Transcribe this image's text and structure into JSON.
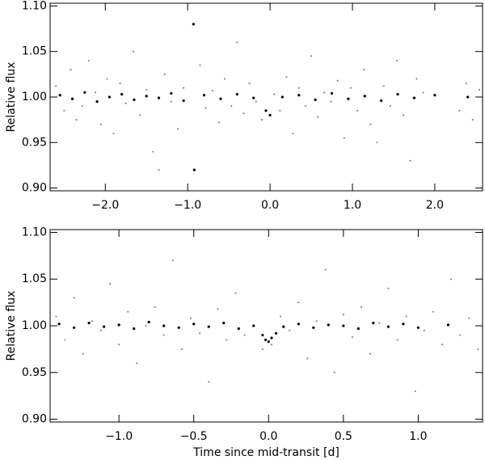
{
  "chart_data": [
    {
      "type": "scatter",
      "ylabel": "Relative flux",
      "xlim": [
        -2.67,
        2.58
      ],
      "ylim": [
        0.897,
        1.103
      ],
      "xticks": [
        {
          "value": -2,
          "label": "−2.0"
        },
        {
          "value": -1,
          "label": "−1.0"
        },
        {
          "value": 0,
          "label": "0.0"
        },
        {
          "value": 1,
          "label": "1.0"
        },
        {
          "value": 2,
          "label": "2.0"
        }
      ],
      "yticks": [
        {
          "value": 0.9,
          "label": "0.90"
        },
        0.95,
        {
          "value": 1,
          "label": "1.00"
        },
        1.05,
        {
          "value": 1.1,
          "label": "1.10"
        }
      ],
      "series": [
        {
          "color": "#8c8c8c",
          "x": [
            -2.6,
            -2.5,
            -2.42,
            -2.35,
            -2.28,
            -2.2,
            -2.12,
            -2.05,
            -1.98,
            -1.9,
            -1.82,
            -1.75,
            -1.66,
            -1.58,
            -1.5,
            -1.42,
            -1.35,
            -1.28,
            -1.2,
            -1.12,
            -1.05,
            -0.85,
            -0.78,
            -0.7,
            -0.62,
            -0.55,
            -0.47,
            -0.4,
            -0.32,
            -0.25,
            -0.17,
            -0.1,
            0.05,
            0.12,
            0.2,
            0.28,
            0.35,
            0.43,
            0.5,
            0.58,
            0.66,
            0.74,
            0.82,
            0.9,
            0.98,
            1.06,
            1.14,
            1.22,
            1.3,
            1.38,
            1.46,
            1.54,
            1.62,
            1.7,
            1.78,
            1.86,
            2.3,
            2.38,
            2.46,
            2.54
          ],
          "values": [
            1.012,
            0.985,
            1.03,
            0.975,
            0.99,
            1.04,
            1.005,
            0.97,
            1.02,
            0.96,
            1.015,
            0.993,
            1.05,
            0.98,
            1.008,
            0.94,
            0.92,
            1.025,
            0.995,
            0.965,
            1.01,
            1.035,
            0.988,
            1.007,
            0.972,
            1.02,
            0.99,
            1.06,
            0.982,
            1.015,
            0.995,
            0.975,
            1.003,
            0.985,
            1.022,
            0.96,
            1.01,
            0.99,
            1.045,
            0.978,
            1.005,
            0.995,
            1.018,
            0.955,
            1.01,
            0.985,
            1.03,
            0.97,
            0.95,
            1.012,
            0.99,
            1.04,
            0.98,
            0.93,
            1.02,
            1.005,
            0.985,
            1.015,
            0.975,
            1.008
          ]
        },
        {
          "color": "#000000",
          "x": [
            -2.55,
            -2.4,
            -2.25,
            -2.1,
            -1.95,
            -1.8,
            -1.65,
            -1.5,
            -1.35,
            -1.2,
            -1.05,
            -0.93,
            -0.92,
            -0.8,
            -0.6,
            -0.4,
            -0.2,
            -0.05,
            0.0,
            0.15,
            0.35,
            0.55,
            0.75,
            0.95,
            1.15,
            1.35,
            1.55,
            1.75,
            2.0,
            2.4
          ],
          "values": [
            1.002,
            0.998,
            1.005,
            0.995,
            1.0,
            1.003,
            0.997,
            1.001,
            0.999,
            1.004,
            0.996,
            1.08,
            0.92,
            1.002,
            0.998,
            1.003,
            0.999,
            0.985,
            0.98,
            1.0,
            1.002,
            0.997,
            1.004,
            0.998,
            1.001,
            0.996,
            1.003,
            0.999,
            1.002,
            1.0
          ]
        }
      ]
    },
    {
      "type": "scatter",
      "ylabel": "Relative flux",
      "xlabel": "Time since mid-transit [d]",
      "xlim": [
        -1.46,
        1.43
      ],
      "ylim": [
        0.897,
        1.103
      ],
      "xticks": [
        {
          "value": -1,
          "label": "−1.0"
        },
        {
          "value": -0.5,
          "label": "−0.5"
        },
        {
          "value": 0,
          "label": "0.0"
        },
        0.5,
        {
          "value": 1,
          "label": "1.0"
        }
      ],
      "yticks": [
        {
          "value": 0.9,
          "label": "0.90"
        },
        0.95,
        {
          "value": 1,
          "label": "1.00"
        },
        1.05,
        {
          "value": 1.1,
          "label": "1.10"
        }
      ],
      "series": [
        {
          "color": "#8c8c8c",
          "x": [
            -1.42,
            -1.36,
            -1.3,
            -1.24,
            -1.18,
            -1.12,
            -1.06,
            -1.0,
            -0.94,
            -0.88,
            -0.82,
            -0.76,
            -0.7,
            -0.64,
            -0.58,
            -0.52,
            -0.46,
            -0.4,
            -0.34,
            -0.28,
            -0.22,
            -0.16,
            -0.1,
            -0.04,
            0.02,
            0.08,
            0.14,
            0.2,
            0.26,
            0.32,
            0.38,
            0.44,
            0.5,
            0.56,
            0.62,
            0.68,
            0.74,
            0.8,
            0.86,
            0.92,
            0.98,
            1.04,
            1.1,
            1.16,
            1.22,
            1.28,
            1.34,
            1.4
          ],
          "values": [
            1.01,
            0.985,
            1.03,
            0.97,
            1.005,
            0.995,
            1.045,
            0.98,
            1.015,
            0.96,
            1.0,
            1.02,
            0.99,
            1.07,
            0.975,
            1.008,
            0.992,
            0.94,
            1.018,
            0.985,
            1.035,
            0.99,
            1.0,
            0.975,
            0.98,
            1.01,
            0.995,
            1.025,
            0.965,
            1.005,
            1.06,
            0.95,
            1.012,
            0.988,
            1.02,
            0.97,
            1.003,
            1.04,
            0.985,
            1.01,
            0.93,
            0.995,
            1.015,
            0.98,
            1.05,
            0.99,
            1.008,
            0.975
          ]
        },
        {
          "color": "#000000",
          "x": [
            -1.4,
            -1.3,
            -1.2,
            -1.1,
            -1.0,
            -0.9,
            -0.8,
            -0.7,
            -0.6,
            -0.5,
            -0.4,
            -0.3,
            -0.2,
            -0.1,
            -0.04,
            -0.02,
            0.0,
            0.02,
            0.05,
            0.1,
            0.2,
            0.3,
            0.4,
            0.5,
            0.6,
            0.7,
            0.8,
            0.9,
            1.0,
            1.2
          ],
          "values": [
            1.002,
            0.998,
            1.003,
            0.999,
            1.001,
            0.997,
            1.004,
            1.0,
            0.998,
            1.002,
            0.999,
            1.003,
            0.997,
            1.0,
            0.99,
            0.985,
            0.983,
            0.987,
            0.992,
            0.999,
            1.002,
            0.998,
            1.001,
            1.0,
            0.997,
            1.003,
            0.999,
            1.002,
            0.998,
            1.001
          ]
        }
      ]
    }
  ]
}
